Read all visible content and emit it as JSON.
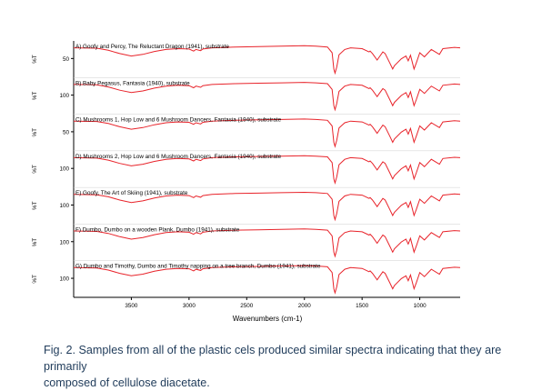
{
  "chart_data": {
    "type": "line",
    "xlabel": "Wavenumbers (cm-1)",
    "ylabel": "%T",
    "x_ticks": [
      "3500",
      "3000",
      "2500",
      "2000",
      "1500",
      "1000"
    ],
    "xlim": [
      4000,
      650
    ],
    "x_reversed": true,
    "line_color": "#e8232a",
    "panels": [
      {
        "label": "A) Goofy and Percy, The Reluctant Dragon (1941), substrate",
        "ytick": "50"
      },
      {
        "label": "B) Baby Pegasus, Fantasia (1940), substrate",
        "ytick": "100"
      },
      {
        "label": "C) Mushrooms 1, Hop Low and 6 Mushroom Dancers, Fantasia (1940), substrate",
        "ytick": "50"
      },
      {
        "label": "D) Mushrooms 2, Hop Low and 6 Mushroom Dancers, Fantasia (1940), substrate",
        "ytick": "100"
      },
      {
        "label": "E) Goofy, The Art of Skiing (1941), substrate",
        "ytick": "100"
      },
      {
        "label": "F) Dumbo, Dumbo on a wooden Plank, Dumbo (1941), substrate",
        "ytick": "100"
      },
      {
        "label": "G) Dumbo and Timothy, Dumbo and Timothy napping on a tree branch, Dumbo (1941), substrate",
        "ytick": "100"
      }
    ],
    "spectrum": {
      "x": [
        4000,
        3800,
        3700,
        3600,
        3500,
        3400,
        3300,
        3200,
        3100,
        3000,
        2960,
        2940,
        2900,
        2880,
        2800,
        2600,
        2400,
        2200,
        2000,
        1900,
        1800,
        1760,
        1745,
        1735,
        1720,
        1700,
        1650,
        1600,
        1500,
        1440,
        1430,
        1410,
        1370,
        1350,
        1320,
        1300,
        1260,
        1235,
        1220,
        1160,
        1120,
        1100,
        1080,
        1050,
        1030,
        1000,
        960,
        900,
        830,
        800,
        700,
        650
      ],
      "y": [
        92,
        91,
        86,
        78,
        72,
        76,
        83,
        88,
        90,
        89,
        84,
        88,
        85,
        89,
        92,
        94,
        95,
        96,
        97,
        96,
        94,
        80,
        40,
        30,
        45,
        75,
        88,
        92,
        90,
        82,
        84,
        78,
        62,
        70,
        82,
        78,
        55,
        40,
        48,
        65,
        72,
        60,
        74,
        40,
        55,
        80,
        70,
        88,
        76,
        90,
        93,
        92
      ]
    }
  },
  "caption": {
    "line1": "Fig. 2. Samples from all of the plastic cels produced similar spectra indicating that they are primarily",
    "line2": "composed of cellulose diacetate."
  }
}
